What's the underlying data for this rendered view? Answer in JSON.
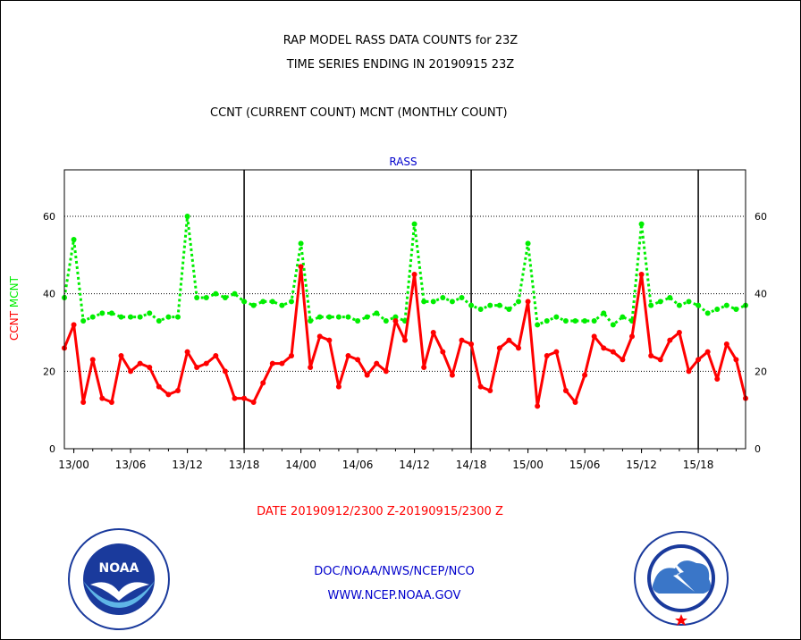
{
  "title_line1": "RAP MODEL RASS DATA COUNTS for 23Z",
  "title_line2": "TIME SERIES ENDING IN 20190915 23Z",
  "subtitle": "CCNT (CURRENT COUNT) MCNT (MONTHLY COUNT)",
  "date_range": "DATE 20190912/2300 Z-20190915/2300 Z",
  "credit_line1": "DOC/NOAA/NWS/NCEP/NCO",
  "credit_line2": "WWW.NCEP.NOAA.GOV",
  "colors": {
    "ccnt": "#ff0000",
    "mcnt": "#00ee00",
    "panel_title": "#0000cc",
    "credit": "#0000cc"
  },
  "icons": {
    "left_logo": "noaa-logo",
    "right_logo": "nws-logo"
  },
  "chart_data": {
    "type": "line",
    "title": "RASS",
    "ylabel_left": [
      "CCNT",
      "MCNT"
    ],
    "ylim": [
      0,
      72
    ],
    "yticks": [
      0,
      20,
      40,
      60
    ],
    "grid": true,
    "x_tick_labels": [
      "13/00",
      "13/06",
      "13/12",
      "13/18",
      "14/00",
      "14/06",
      "14/12",
      "14/18",
      "15/00",
      "15/06",
      "15/12",
      "15/18"
    ],
    "x_tick_hours": [
      1,
      7,
      13,
      19,
      25,
      31,
      37,
      43,
      49,
      55,
      61,
      67
    ],
    "day_boundaries_hours": [
      19,
      43,
      67
    ],
    "x_range_hours": [
      0,
      72
    ],
    "series": [
      {
        "name": "CCNT",
        "color": "#ff0000",
        "values": [
          26,
          32,
          12,
          23,
          13,
          12,
          24,
          20,
          22,
          21,
          16,
          14,
          15,
          25,
          21,
          22,
          24,
          20,
          13,
          13,
          12,
          17,
          22,
          22,
          24,
          47,
          21,
          29,
          28,
          16,
          24,
          23,
          19,
          22,
          20,
          33,
          28,
          45,
          21,
          30,
          25,
          19,
          28,
          27,
          16,
          15,
          26,
          28,
          26,
          38,
          11,
          24,
          25,
          15,
          12,
          19,
          29,
          26,
          25,
          23,
          29,
          45,
          24,
          23,
          28,
          30,
          20,
          23,
          25,
          18,
          27,
          23,
          13
        ]
      },
      {
        "name": "MCNT",
        "color": "#00ee00",
        "values": [
          39,
          54,
          33,
          34,
          35,
          35,
          34,
          34,
          34,
          35,
          33,
          34,
          34,
          60,
          39,
          39,
          40,
          39,
          40,
          38,
          37,
          38,
          38,
          37,
          38,
          53,
          33,
          34,
          34,
          34,
          34,
          33,
          34,
          35,
          33,
          34,
          33,
          58,
          38,
          38,
          39,
          38,
          39,
          37,
          36,
          37,
          37,
          36,
          38,
          53,
          32,
          33,
          34,
          33,
          33,
          33,
          33,
          35,
          32,
          34,
          33,
          58,
          37,
          38,
          39,
          37,
          38,
          37,
          35,
          36,
          37,
          36,
          37
        ]
      }
    ]
  }
}
